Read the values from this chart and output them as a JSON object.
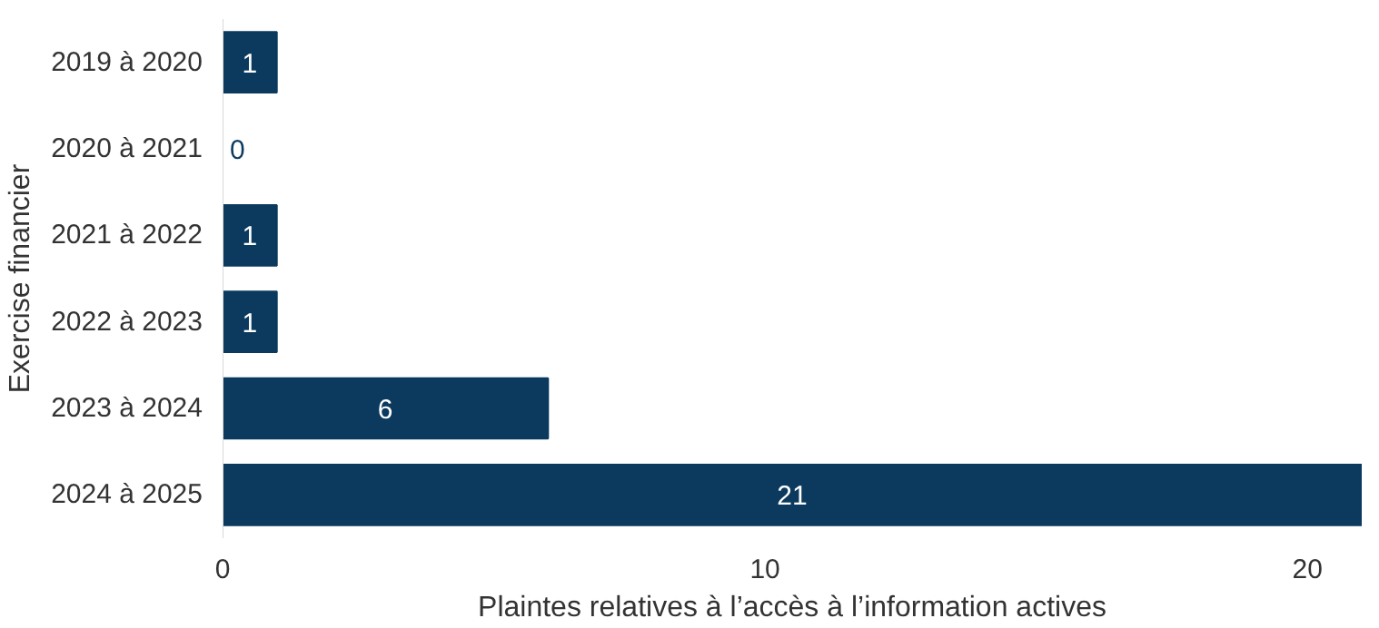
{
  "chart_data": {
    "type": "bar",
    "orientation": "horizontal",
    "xlabel": "Plaintes relatives à l’accès à l’information actives",
    "ylabel": "Exercise financier",
    "categories": [
      "2019 à 2020",
      "2020 à 2021",
      "2021 à 2022",
      "2022 à 2023",
      "2023 à 2024",
      "2024 à 2025"
    ],
    "values": [
      1,
      0,
      1,
      1,
      6,
      21
    ],
    "color": "#0b3a5e",
    "xlim": [
      0,
      21
    ],
    "xticks": [
      0,
      10,
      20
    ],
    "data_labels": true
  }
}
